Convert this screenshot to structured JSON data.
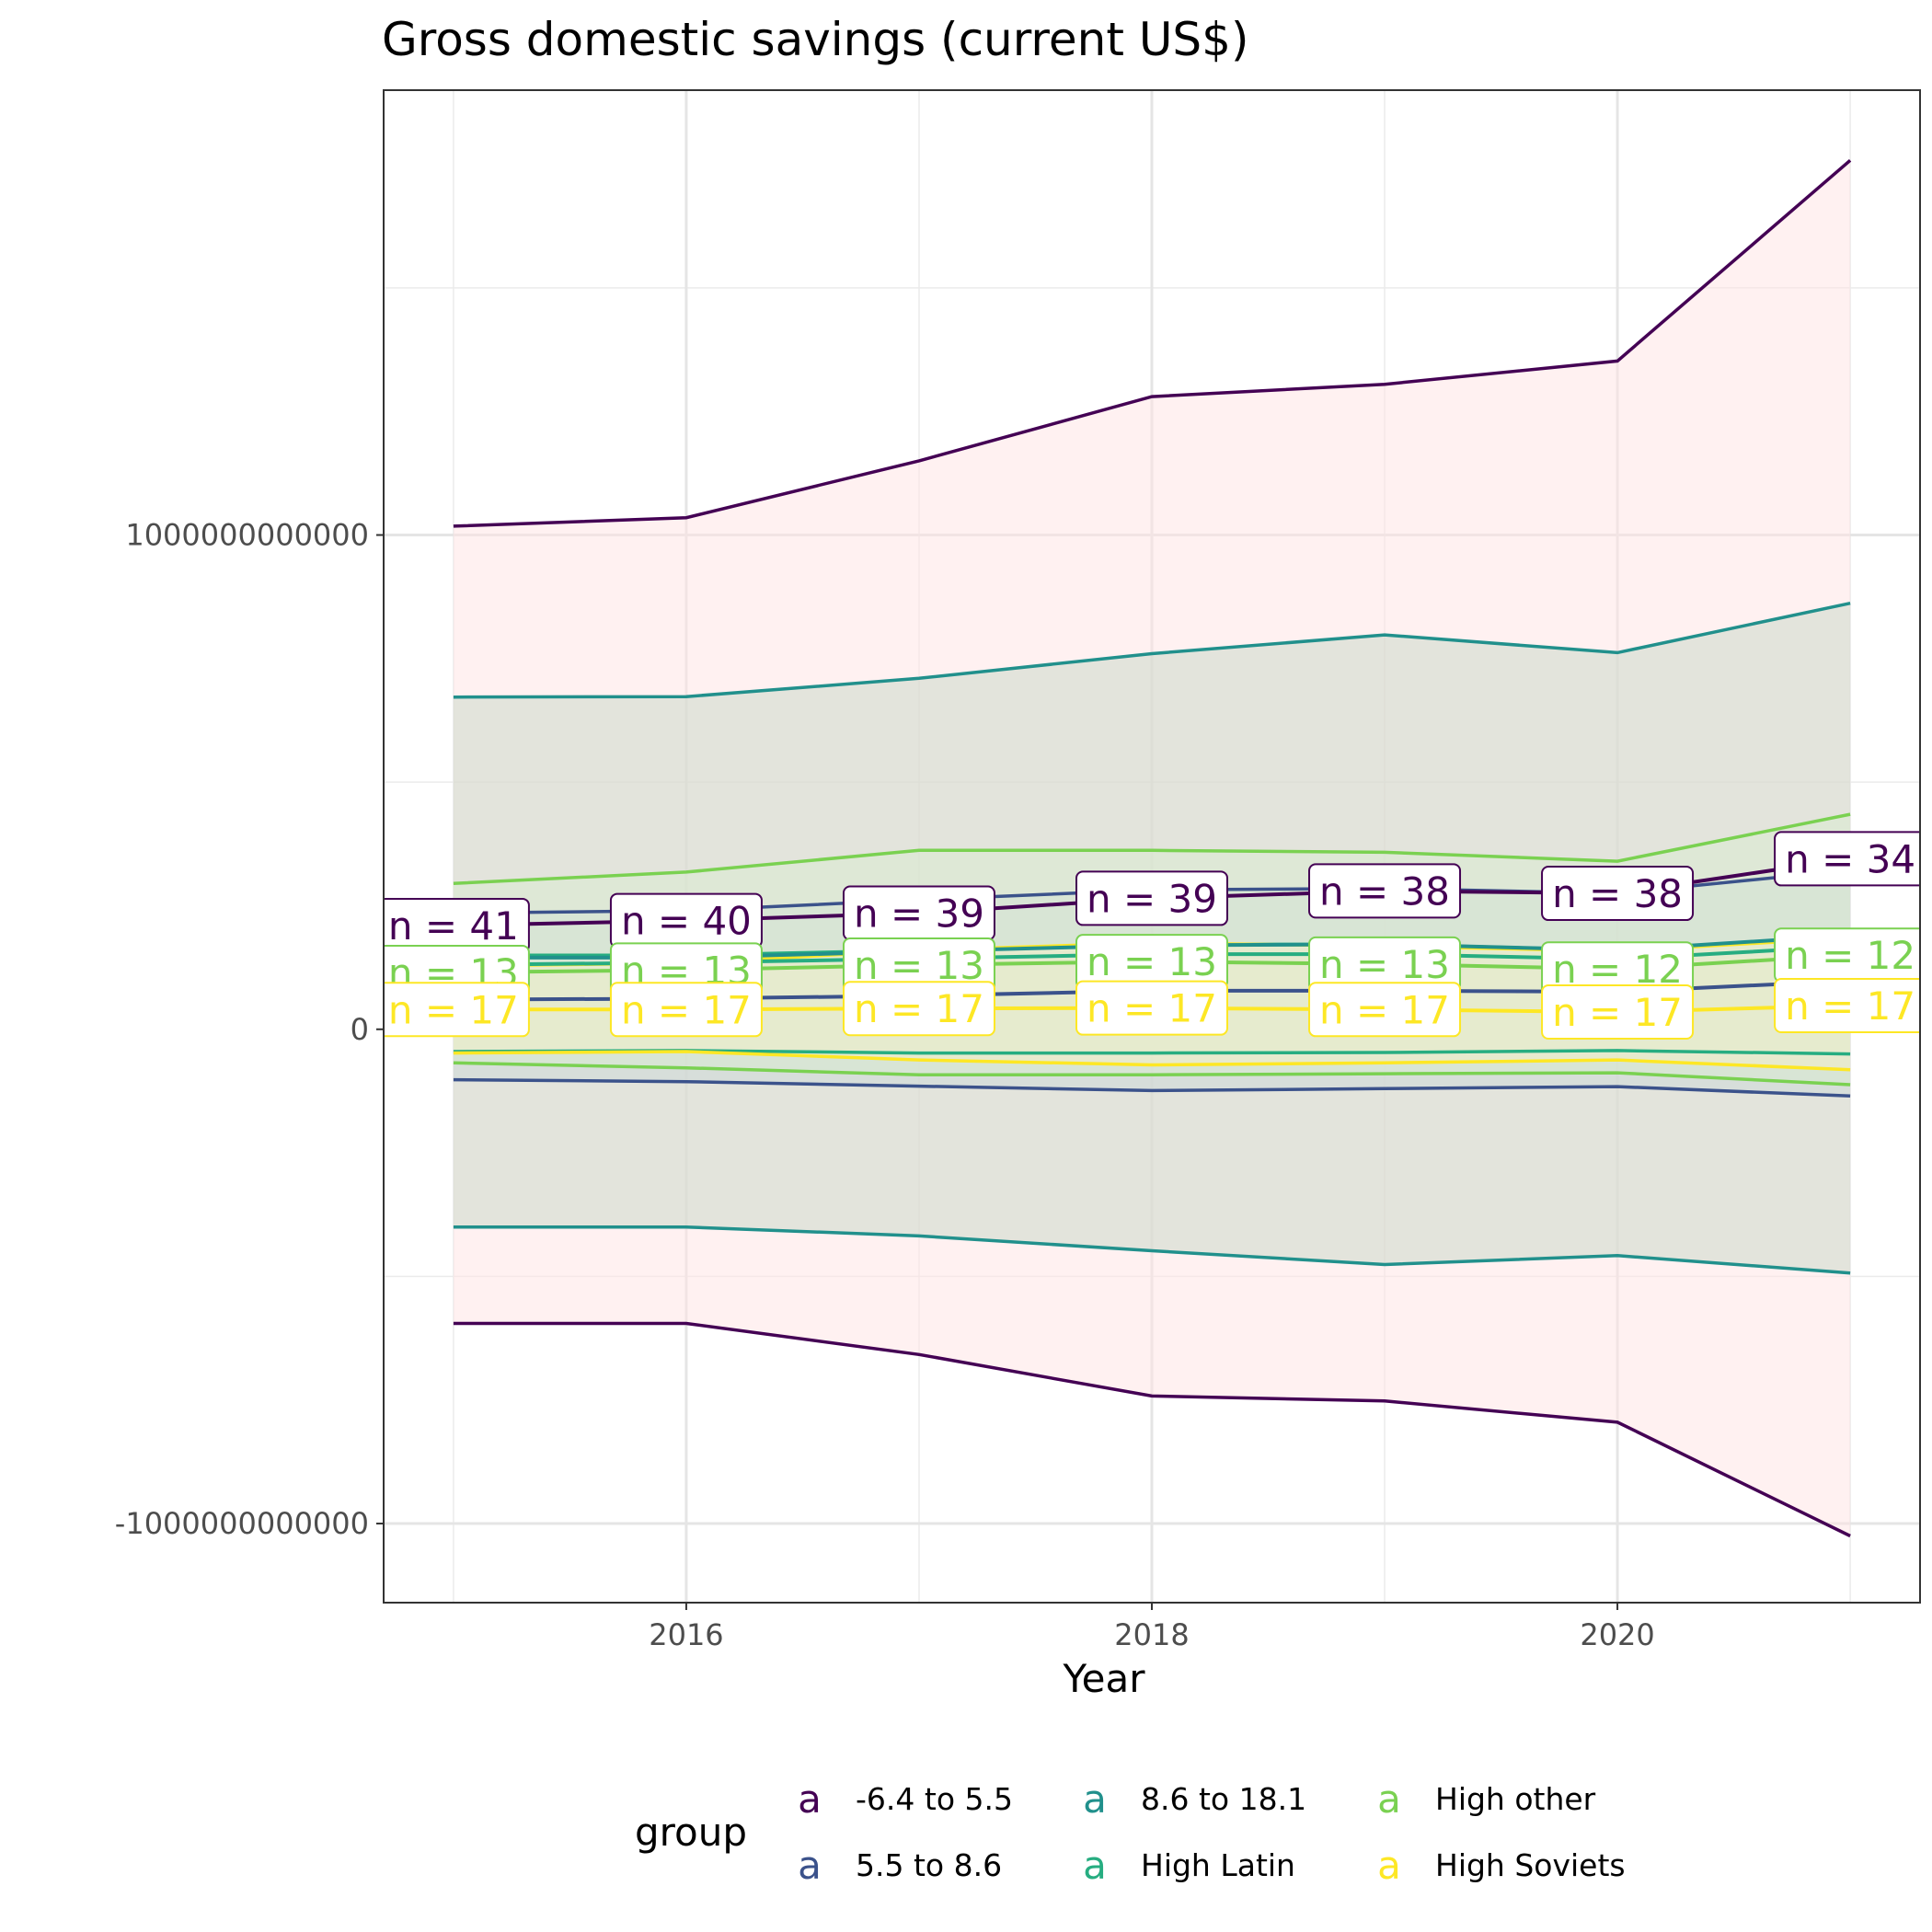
{
  "chart_data": {
    "type": "line",
    "title": "Gross domestic savings (current US$)",
    "xlabel": "Year",
    "ylabel": "",
    "x": [
      2015,
      2016,
      2017,
      2018,
      2019,
      2020,
      2021
    ],
    "xlim": [
      2014.7,
      2021.3
    ],
    "ylim": [
      -1160000000000,
      1900000000000
    ],
    "x_ticks": [
      2016,
      2018,
      2020
    ],
    "x_tick_labels": [
      "2016",
      "2018",
      "2020"
    ],
    "y_ticks": [
      -1000000000000,
      0,
      1000000000000
    ],
    "y_tick_labels": [
      "-1000000000000",
      "0",
      "1000000000000"
    ],
    "y_minor_ticks": [
      -500000000000,
      500000000000,
      1500000000000
    ],
    "grid": true,
    "legend_title": "group",
    "legend_position": "bottom",
    "series": [
      {
        "name": "-6.4 to 5.5",
        "color": "#440154",
        "mean": [
          210000000000,
          220000000000,
          235000000000,
          265000000000,
          280000000000,
          275000000000,
          345000000000
        ],
        "lower": [
          -595000000000,
          -595000000000,
          -658000000000,
          -742000000000,
          -752000000000,
          -795000000000,
          -1025000000000
        ],
        "upper": [
          1018000000000,
          1035000000000,
          1150000000000,
          1280000000000,
          1305000000000,
          1352000000000,
          1758000000000
        ],
        "n_labels": [
          "n = 41",
          "n = 40",
          "n = 39",
          "n = 39",
          "n = 38",
          "n = 38",
          "n = 34"
        ]
      },
      {
        "name": "5.5 to 8.6",
        "color": "#3b528b",
        "mean": [
          60000000000,
          62000000000,
          68000000000,
          78000000000,
          78000000000,
          76000000000,
          98000000000
        ],
        "lower": [
          -102000000000,
          -106000000000,
          -115000000000,
          -124000000000,
          -120000000000,
          -116000000000,
          -135000000000
        ],
        "upper": [
          235000000000,
          240000000000,
          262000000000,
          282000000000,
          285000000000,
          275000000000,
          322000000000
        ],
        "n_labels": []
      },
      {
        "name": "8.6 to 18.1",
        "color": "#21908c",
        "mean": [
          145000000000,
          145000000000,
          158000000000,
          170000000000,
          172000000000,
          160000000000,
          190000000000
        ],
        "lower": [
          -400000000000,
          -400000000000,
          -418000000000,
          -448000000000,
          -476000000000,
          -458000000000,
          -493000000000
        ],
        "upper": [
          672000000000,
          673000000000,
          710000000000,
          760000000000,
          798000000000,
          762000000000,
          862000000000
        ],
        "n_labels": []
      },
      {
        "name": "High Latin",
        "color": "#27ad81",
        "mean": [
          130000000000,
          135000000000,
          143000000000,
          152000000000,
          152000000000,
          142000000000,
          168000000000
        ],
        "lower": [
          -45000000000,
          -43000000000,
          -48000000000,
          -48000000000,
          -47000000000,
          -43000000000,
          -50000000000
        ],
        "upper": [
          150000000000,
          150000000000,
          160000000000,
          172000000000,
          172000000000,
          160000000000,
          188000000000
        ],
        "n_labels": []
      },
      {
        "name": "High other",
        "color": "#7ad151",
        "mean": [
          115000000000,
          120000000000,
          130000000000,
          137000000000,
          132000000000,
          122000000000,
          150000000000
        ],
        "lower": [
          -68000000000,
          -78000000000,
          -92000000000,
          -92000000000,
          -90000000000,
          -88000000000,
          -112000000000
        ],
        "upper": [
          295000000000,
          318000000000,
          362000000000,
          362000000000,
          358000000000,
          340000000000,
          435000000000
        ],
        "n_labels": [
          "n = 13",
          "n = 13",
          "n = 13",
          "n = 13",
          "n = 13",
          "n = 12",
          "n = 12"
        ]
      },
      {
        "name": "High Soviets",
        "color": "#fde725",
        "mean": [
          40000000000,
          40000000000,
          42000000000,
          43000000000,
          40000000000,
          35000000000,
          48000000000
        ],
        "lower": [
          -48000000000,
          -45000000000,
          -62000000000,
          -72000000000,
          -68000000000,
          -62000000000,
          -82000000000
        ],
        "upper": [
          128000000000,
          134000000000,
          160000000000,
          175000000000,
          168000000000,
          158000000000,
          185000000000
        ],
        "n_labels": [
          "n = 17",
          "n = 17",
          "n = 17",
          "n = 17",
          "n = 17",
          "n = 17",
          "n = 17"
        ]
      }
    ]
  },
  "legend": {
    "items": [
      {
        "key": "a",
        "label": "-6.4 to 5.5",
        "color": "#440154"
      },
      {
        "key": "a",
        "label": "5.5 to 8.6",
        "color": "#3b528b"
      },
      {
        "key": "a",
        "label": "8.6 to 18.1",
        "color": "#21908c"
      },
      {
        "key": "a",
        "label": "High Latin",
        "color": "#27ad81"
      },
      {
        "key": "a",
        "label": "High other",
        "color": "#7ad151"
      },
      {
        "key": "a",
        "label": "High Soviets",
        "color": "#fde725"
      }
    ]
  }
}
